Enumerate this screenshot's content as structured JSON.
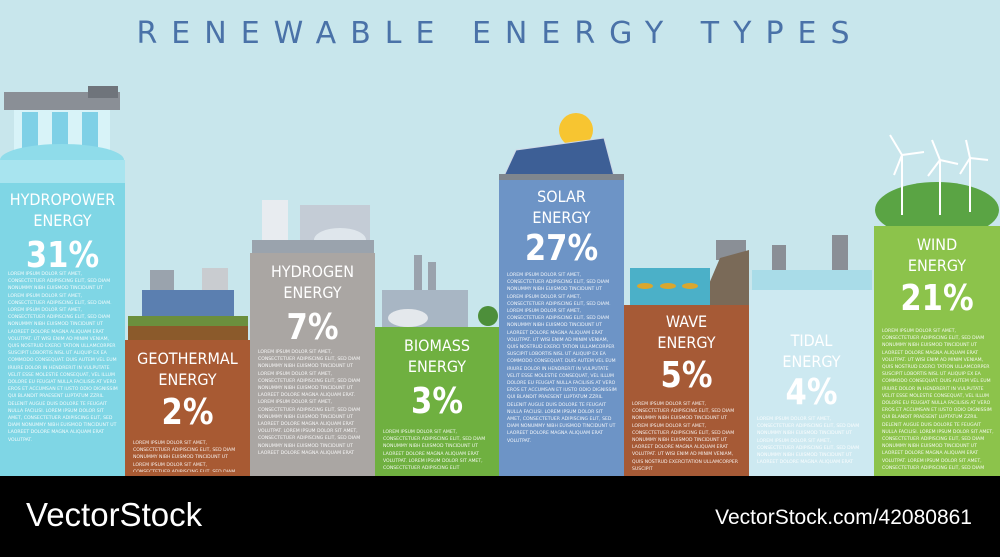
{
  "header": {
    "title": "RENEWABLE ENERGY TYPES"
  },
  "columns": [
    {
      "name": [
        "HYDROPOWER",
        "ENERGY"
      ],
      "percent": "31%",
      "text": "LOREM IPSUM DOLOR SIT AMET, CONSECTETUER ADIPISCING ELIT, SED DIAM NONUMMY NIBH EUISMOD TINCIDUNT UT LOREM IPSUM DOLOR SIT AMET, CONSECTETUER ADIPISCING ELIT, SED DIAM. LOREM IPSUM DOLOR SIT AMET, CONSECTETUER ADIPISCING ELIT, SED DIAM NONUMMY NIBH EUISMOD TINCIDUNT UT LAOREET DOLORE MAGNA ALIQUAM ERAT VOLUTPAT. UT WISI ENIM AD MINIM VENIAM, QUIS NOSTRUD EXERCI TATION ULLAMCORPER SUSCIPIT LOBORTIS NISL UT ALIQUIP EX EA COMMODO CONSEQUAT. DUIS AUTEM VEL EUM IRIURE DOLOR IN HENDRERIT IN VULPUTATE VELIT ESSE MOLESTIE CONSEQUAT, VEL ILLUM DOLORE EU FEUGIAT NULLA FACILISIS AT VERO EROS ET ACCUMSAN ET IUSTO ODIO DIGNISSIM QUI BLANDIT PRAESENT LUPTATUM ZZRIL DELENIT AUGUE DUIS DOLORE TE FEUGAIT NULLA FACILISI. LOREM IPSUM DOLOR SIT AMET, CONSECTETUER ADIPISCING ELIT, SED DIAM NONUMMY NIBH EUISMOD TINCIDUNT UT LAOREET DOLORE MAGNA ALIQUAM ERAT VOLUTPAT."
    },
    {
      "name": [
        "GEOTHERMAL",
        "ENERGY"
      ],
      "percent": "2%",
      "text": "LOREM IPSUM DOLOR SIT AMET, CONSECTETUER ADIPISCING ELIT, SED DIAM NONUMMY NIBH EUISMOD TINCIDUNT UT LOREM IPSUM DOLOR SIT AMET, CONSECTETUER ADIPISCING ELIT, SED DIAM"
    },
    {
      "name": [
        "HYDROGEN",
        "ENERGY"
      ],
      "percent": "7%",
      "text": "LOREM IPSUM DOLOR SIT AMET, CONSECTETUER ADIPISCING ELIT, SED DIAM NONUMMY NIBH EUISMOD TINCIDUNT UT LOREM IPSUM DOLOR SIT AMET, CONSECTETUER ADIPISCING ELIT, SED DIAM NONUMMY NIBH EUISMOD TINCIDUNT UT LAOREET DOLORE MAGNA ALIQUAM ERAT. LOREM IPSUM DOLOR SIT AMET, CONSECTETUER ADIPISCING ELIT, SED DIAM NONUMMY NIBH EUISMOD TINCIDUNT UT LAOREET DOLORE MAGNA ALIQUAM ERAT VOLUTPAT. LOREM IPSUM DOLOR SIT AMET, CONSECTETUER ADIPISCING ELIT, SED DIAM NONUMMY NIBH EUISMOD TINCIDUNT UT LAOREET DOLORE MAGNA ALIQUAM ERAT"
    },
    {
      "name": [
        "BIOMASS",
        "ENERGY"
      ],
      "percent": "3%",
      "text": "LOREM IPSUM DOLOR SIT AMET, CONSECTETUER ADIPISCING ELIT, SED DIAM NONUMMY NIBH EUISMOD TINCIDUNT UT LAOREET DOLORE MAGNA ALIQUAM ERAT VOLUTPAT. LOREM IPSUM DOLOR SIT AMET, CONSECTETUER ADIPISCING ELIT"
    },
    {
      "name": [
        "SOLAR",
        "ENERGY"
      ],
      "percent": "27%",
      "text": "LOREM IPSUM DOLOR SIT AMET, CONSECTETUER ADIPISCING ELIT, SED DIAM NONUMMY NIBH EUISMOD TINCIDUNT UT LOREM IPSUM DOLOR SIT AMET, CONSECTETUER ADIPISCING ELIT, SED DIAM. LOREM IPSUM DOLOR SIT AMET, CONSECTETUER ADIPISCING ELIT, SED DIAM NONUMMY NIBH EUISMOD TINCIDUNT UT LAOREET DOLORE MAGNA ALIQUAM ERAT VOLUTPAT. UT WISI ENIM AD MINIM VENIAM, QUIS NOSTRUD EXERCI TATION ULLAMCORPER SUSCIPIT LOBORTIS NISL UT ALIQUIP EX EA COMMODO CONSEQUAT. DUIS AUTEM VEL EUM IRIURE DOLOR IN HENDRERIT IN VULPUTATE VELIT ESSE MOLESTIE CONSEQUAT, VEL ILLUM DOLORE EU FEUGIAT NULLA FACILISIS AT VERO EROS ET ACCUMSAN ET IUSTO ODIO DIGNISSIM QUI BLANDIT PRAESENT LUPTATUM ZZRIL DELENIT AUGUE DUIS DOLORE TE FEUGAIT NULLA FACILISI. LOREM IPSUM DOLOR SIT AMET, CONSECTETUER ADIPISCING ELIT, SED DIAM NONUMMY NIBH EUISMOD TINCIDUNT UT LAOREET DOLORE MAGNA ALIQUAM ERAT VOLUTPAT."
    },
    {
      "name": [
        "WAVE",
        "ENERGY"
      ],
      "percent": "5%",
      "text": "LOREM IPSUM DOLOR SIT AMET, CONSECTETUER ADIPISCING ELIT, SED DIAM NONUMMY NIBH EUISMOD TINCIDUNT UT LOREM IPSUM DOLOR SIT AMET, CONSECTETUER ADIPISCING ELIT, SED DIAM NONUMMY NIBH EUISMOD TINCIDUNT UT LAOREET DOLORE MAGNA ALIQUAM ERAT VOLUTPAT. UT WISI ENIM AD MINIM VENIAM, QUIS NOSTRUD EXERCITATION ULLAMCORPER SUSCIPIT"
    },
    {
      "name": [
        "TIDAL",
        "ENERGY"
      ],
      "percent": "4%",
      "text": "LOREM IPSUM DOLOR SIT AMET, CONSECTETUER ADIPISCING ELIT, SED DIAM NONUMMY NIBH EUISMOD TINCIDUNT UT LOREM IPSUM DOLOR SIT AMET, CONSECTETUER ADIPISCING ELIT, SED DIAM NONUMMY NIBH EUISMOD TINCIDUNT UT LAOREET DOLORE MAGNA ALIQUAM ERAT"
    },
    {
      "name": [
        "WIND",
        "ENERGY"
      ],
      "percent": "21%",
      "text": "LOREM IPSUM DOLOR SIT AMET, CONSECTETUER ADIPISCING ELIT, SED DIAM NONUMMY NIBH EUISMOD TINCIDUNT UT LAOREET DOLORE MAGNA ALIQUAM ERAT VOLUTPAT. UT WISI ENIM AD MINIM VENIAM, QUIS NOSTRUD EXERCI TATION ULLAMCORPER SUSCIPIT LOBORTIS NISL UT ALIQUIP EX EA COMMODO CONSEQUAT. DUIS AUTEM VEL EUM IRIURE DOLOR IN HENDRERIT IN VULPUTATE VELIT ESSE MOLESTIE CONSEQUAT, VEL ILLUM DOLORE EU FEUGIAT NULLA FACILISIS AT VERO EROS ET ACCUMSAN ET IUSTO ODIO DIGNISSIM QUI BLANDIT PRAESENT LUPTATUM ZZRIL DELENIT AUGUE DUIS DOLORE TE FEUGAIT NULLA FACILISI. LOREM IPSUM DOLOR SIT AMET, CONSECTETUER ADIPISCING ELIT, SED DIAM NONUMMY NIBH EUISMOD TINCIDUNT UT LAOREET DOLORE MAGNA ALIQUAM ERAT VOLUTPAT. LOREM IPSUM DOLOR SIT AMET, CONSECTETUER ADIPISCING ELIT, SED DIAM NONUMMY NIBH EUISMOD TINCIDUNT UT LAOREET DOLORE MAGNA ALIQUAM ERAT"
    }
  ],
  "footer": {
    "brand": "VectorStock",
    "id": "VectorStock.com/42080861"
  }
}
